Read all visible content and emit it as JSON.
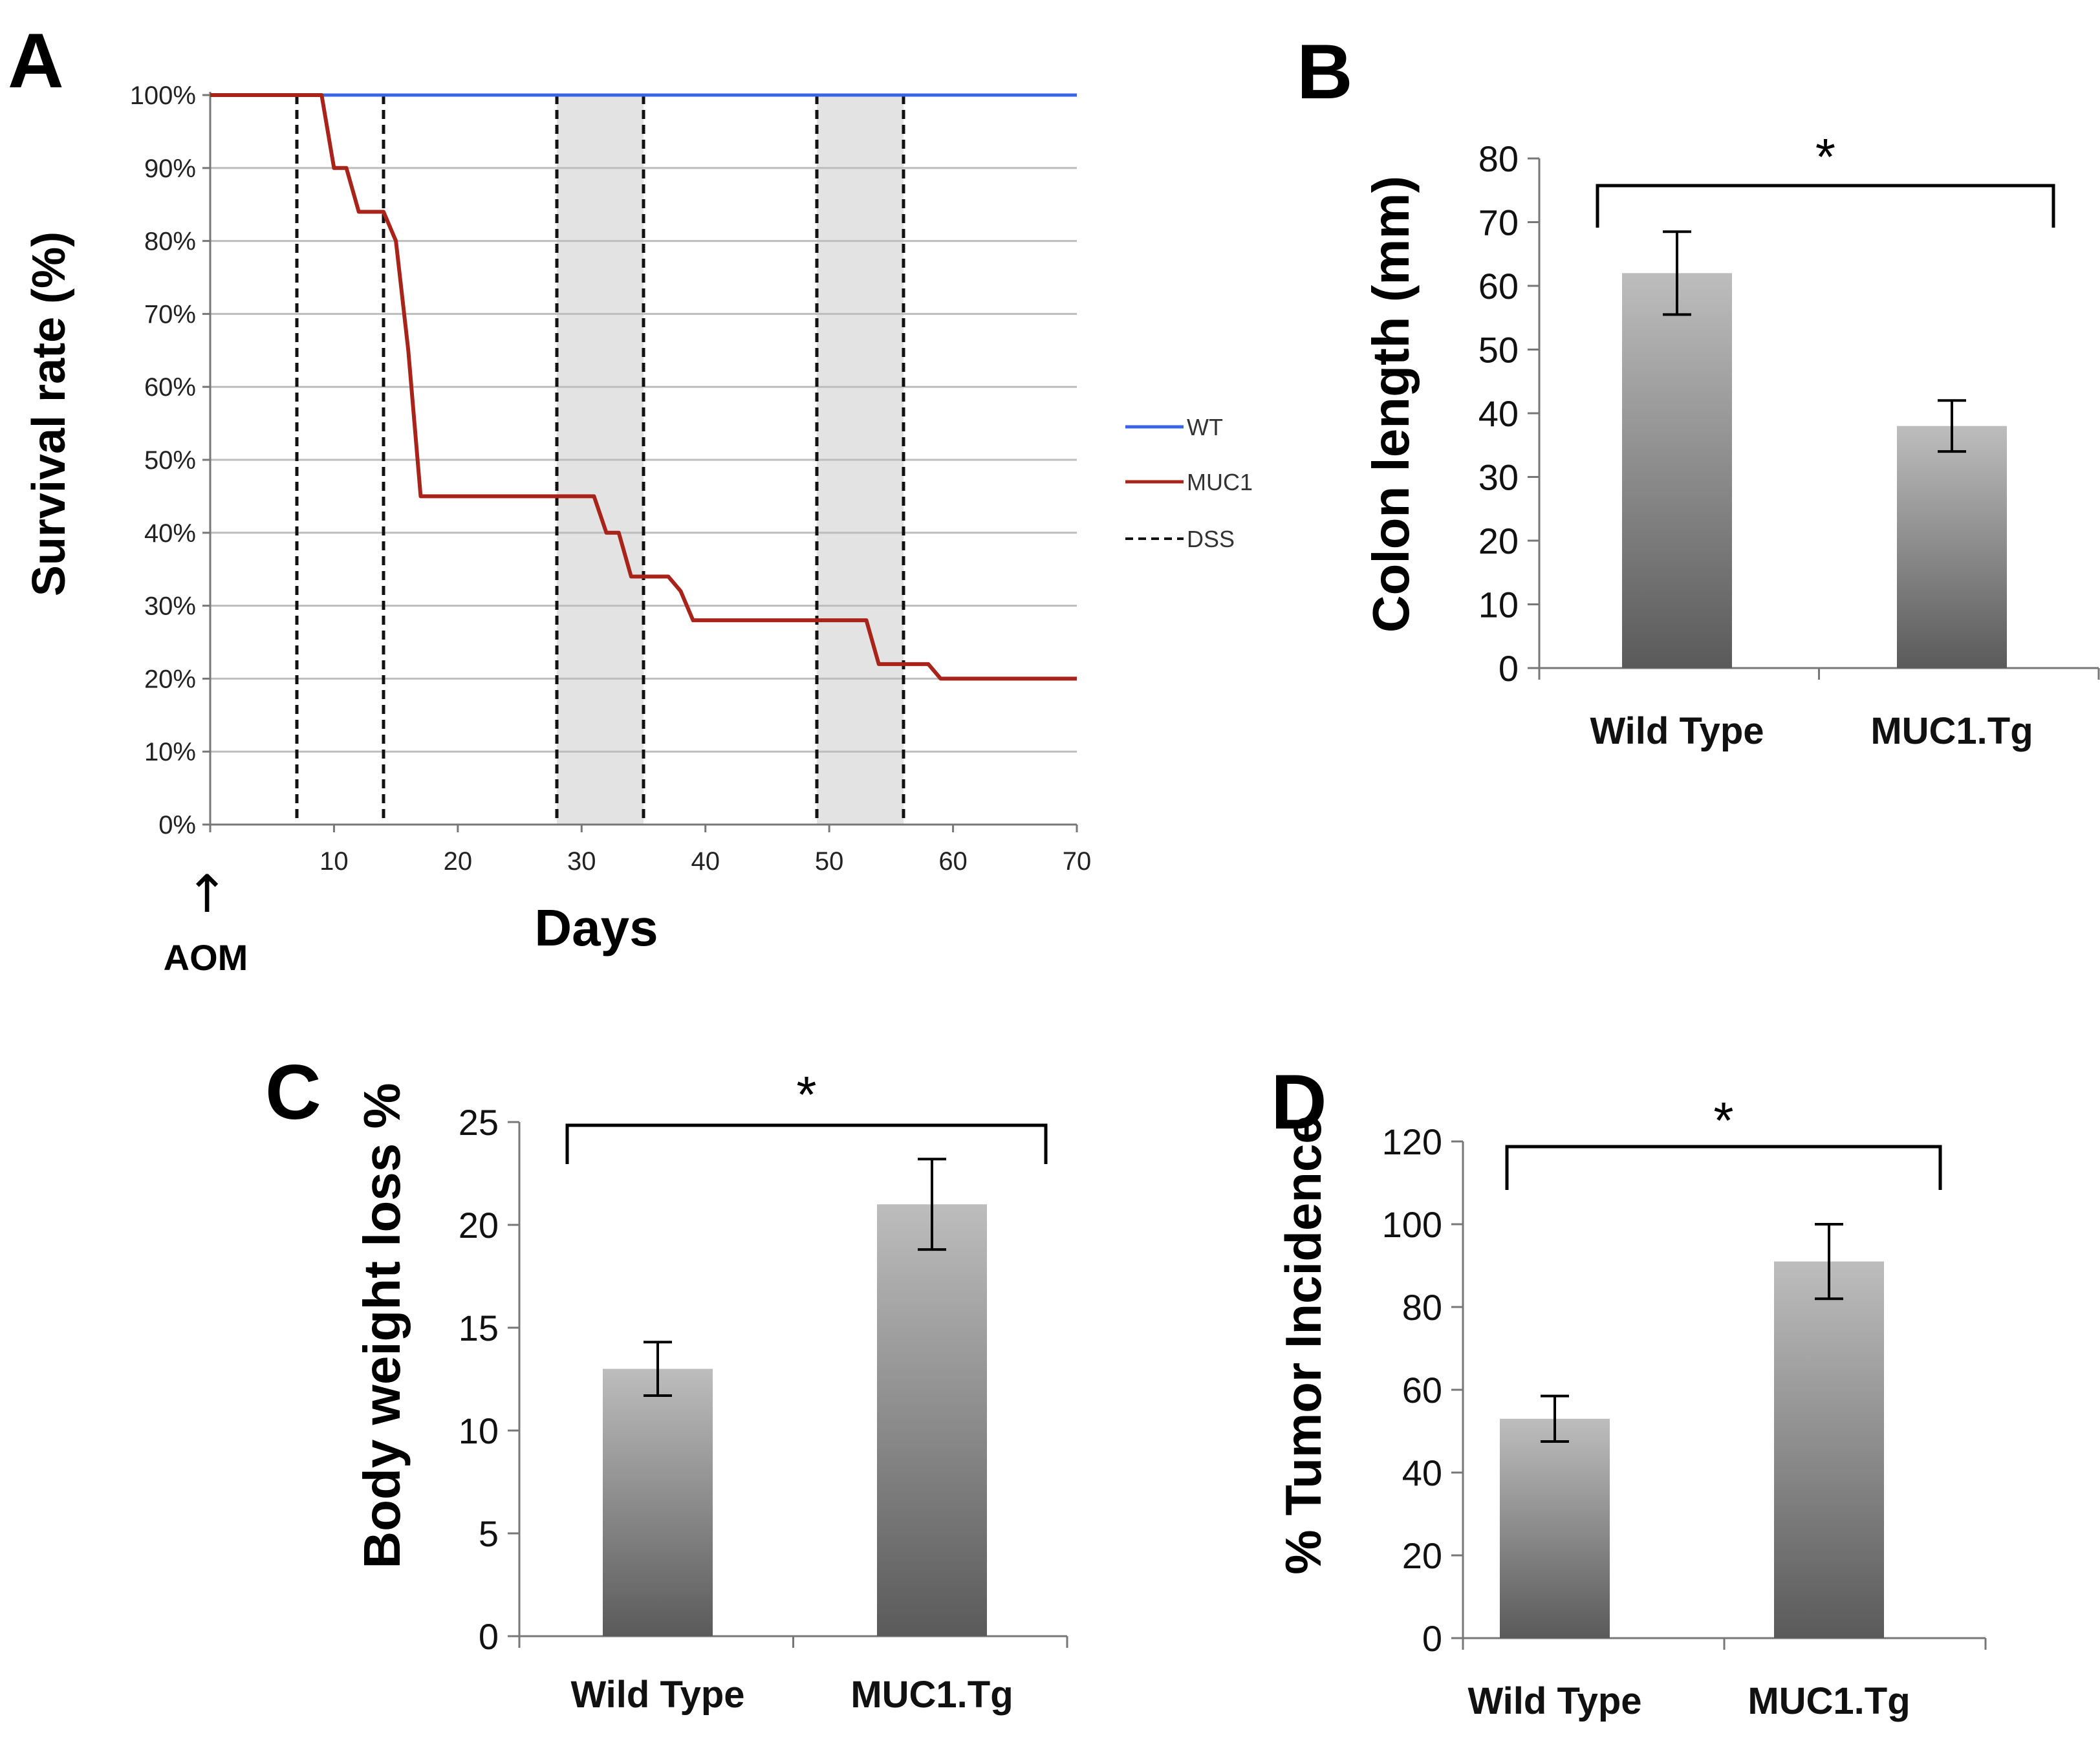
{
  "colors": {
    "wt": "#3a64e6",
    "muc1": "#a8231a",
    "dss": "#111111",
    "shade": "#e3e3e3",
    "grid": "#bdbdbd",
    "bar_top": "#bdbdbd",
    "bar_bottom": "#5a5a5a"
  },
  "chart_data": [
    {
      "panel": "A",
      "type": "line",
      "ylabel": "Survival rate (%)",
      "xlabel": "Days",
      "xlim": [
        0,
        70
      ],
      "ylim": [
        0,
        100
      ],
      "x_ticks": [
        "10",
        "20",
        "30",
        "40",
        "50",
        "60",
        "70"
      ],
      "x_tick_values": [
        10,
        20,
        30,
        40,
        50,
        60,
        70
      ],
      "y_ticks": [
        "0%",
        "10%",
        "20%",
        "30%",
        "40%",
        "50%",
        "60%",
        "70%",
        "80%",
        "90%",
        "100%"
      ],
      "y_tick_values": [
        0,
        10,
        20,
        30,
        40,
        50,
        60,
        70,
        80,
        90,
        100
      ],
      "grid": true,
      "legend_position": "right",
      "series": [
        {
          "name": "WT",
          "style": "solid",
          "x": [
            0,
            70
          ],
          "y": [
            100,
            100
          ]
        },
        {
          "name": "MUC1",
          "style": "solid",
          "x": [
            0,
            9,
            10,
            11,
            12,
            14,
            15,
            16,
            17,
            31,
            32,
            33,
            34,
            35,
            37,
            38,
            39,
            53,
            54,
            58,
            59,
            70
          ],
          "y": [
            100,
            100,
            90,
            90,
            84,
            84,
            80,
            65,
            45,
            45,
            40,
            40,
            34,
            34,
            34,
            32,
            28,
            28,
            22,
            22,
            20,
            20
          ]
        }
      ],
      "legend": [
        {
          "label": "WT",
          "style": "solid"
        },
        {
          "label": "MUC1",
          "style": "solid"
        },
        {
          "label": "DSS",
          "style": "dashed"
        }
      ],
      "dss_lines": [
        7,
        14,
        28,
        35,
        49,
        56
      ],
      "shaded_ranges": [
        [
          28,
          35
        ],
        [
          49,
          56
        ]
      ],
      "annotation": {
        "label": "AOM",
        "x": 0,
        "arrow": "↑"
      }
    },
    {
      "panel": "B",
      "type": "bar",
      "ylabel": "Colon length (mm)",
      "categories": [
        "Wild Type",
        "MUC1.Tg"
      ],
      "values": [
        62,
        38
      ],
      "errors": [
        6.5,
        4
      ],
      "ylim": [
        0,
        80
      ],
      "y_ticks": [
        0,
        10,
        20,
        30,
        40,
        50,
        60,
        70,
        80
      ],
      "significance": "*"
    },
    {
      "panel": "C",
      "type": "bar",
      "ylabel": "Body weight loss %",
      "categories": [
        "Wild Type",
        "MUC1.Tg"
      ],
      "values": [
        13,
        21
      ],
      "errors": [
        1.3,
        2.2
      ],
      "ylim": [
        0,
        25
      ],
      "y_ticks": [
        0,
        5,
        10,
        15,
        20,
        25
      ],
      "significance": "*"
    },
    {
      "panel": "D",
      "type": "bar",
      "ylabel": "% Tumor Incidence",
      "categories": [
        "Wild Type",
        "MUC1.Tg"
      ],
      "values": [
        53,
        91
      ],
      "errors": [
        5.5,
        9
      ],
      "ylim": [
        0,
        120
      ],
      "y_ticks": [
        0,
        20,
        40,
        60,
        80,
        100,
        120
      ],
      "significance": "*"
    }
  ]
}
